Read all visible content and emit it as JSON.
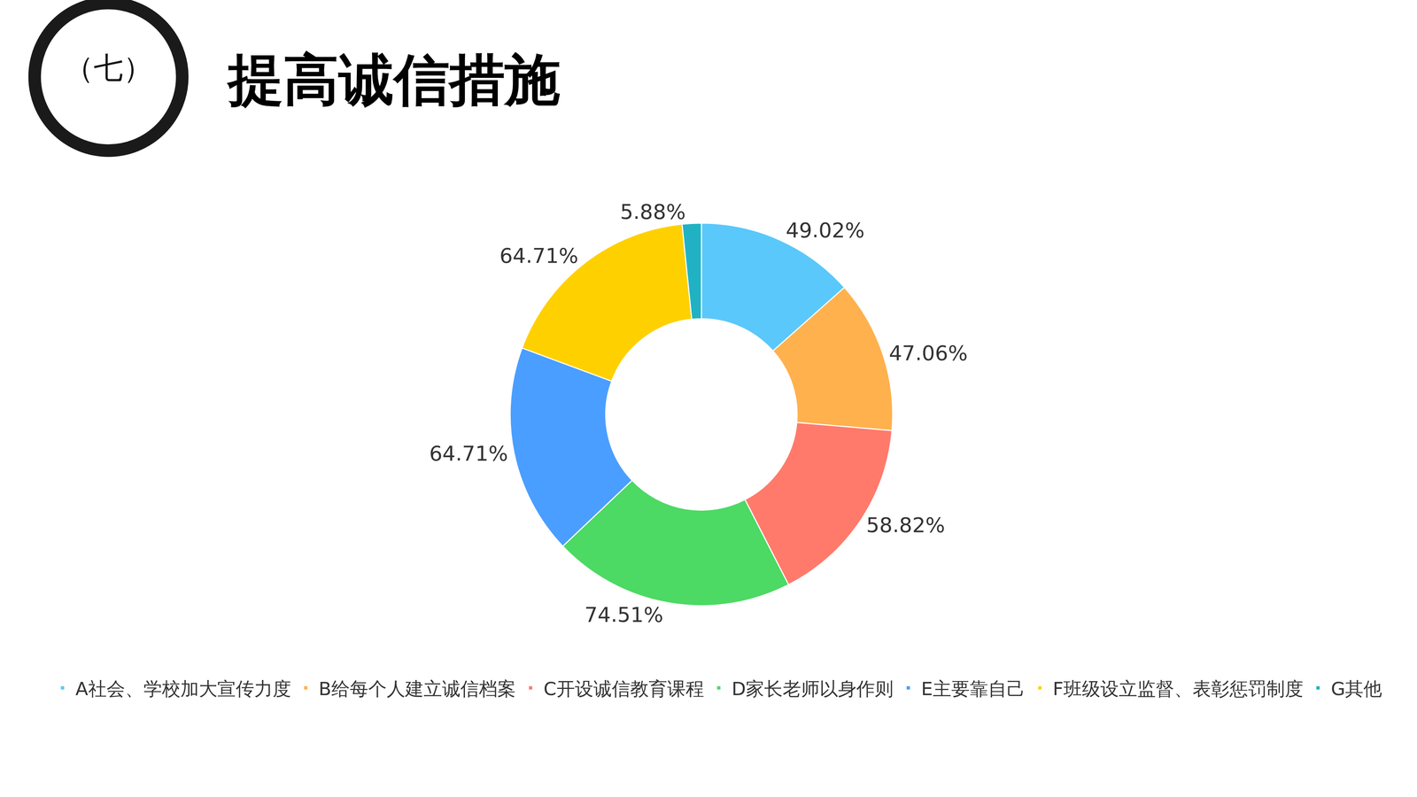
{
  "header": {
    "number": "（七）",
    "title": "提高诚信措施"
  },
  "chart_data": {
    "type": "pie",
    "categories": [
      "A社会、学校加大宣传力度",
      "B给每个人建立诚信档案",
      "C开设诚信教育课程",
      "D家长老师以身作则",
      "E主要靠自己",
      "F班级设立监督、表彰惩罚制度",
      "G其他"
    ],
    "values": [
      49.02,
      47.06,
      58.82,
      74.51,
      64.71,
      64.71,
      5.88
    ],
    "value_labels": [
      "49.02%",
      "47.06%",
      "58.82%",
      "74.51%",
      "64.71%",
      "64.71%",
      "5.88%"
    ],
    "colors": [
      "#5AC8FA",
      "#FFB14E",
      "#FF7A6B",
      "#4CD964",
      "#4A9EFF",
      "#FFD000",
      "#20B2C4"
    ],
    "data_labels": true,
    "legend": "bottom"
  }
}
